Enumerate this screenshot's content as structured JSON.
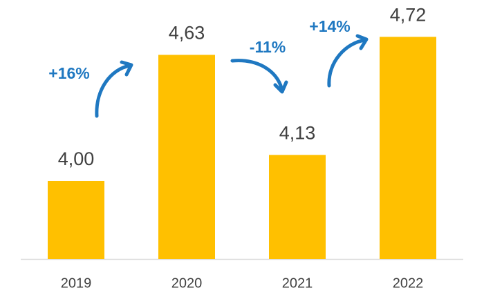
{
  "chart_data": {
    "type": "bar",
    "categories": [
      "2019",
      "2020",
      "2021",
      "2022"
    ],
    "values": [
      4.0,
      4.63,
      4.13,
      4.72
    ],
    "value_labels": [
      "4,00",
      "4,63",
      "4,13",
      "4,72"
    ],
    "color": "#ffc000",
    "ylim": [
      3.61,
      4.88
    ],
    "annotations": [
      "+16%",
      "-11%",
      "+14%"
    ],
    "annotation_color": "#1f78c1"
  }
}
